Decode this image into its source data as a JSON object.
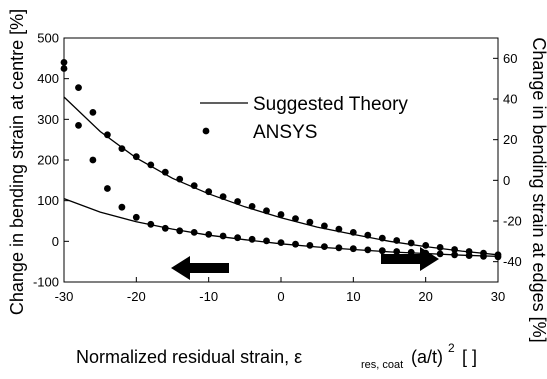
{
  "chart_data": {
    "type": "line",
    "title": "",
    "xlabel": "Normalized residual strain, ε",
    "xlabel_sub": "res, coat",
    "xlabel_tail": "(a/t)",
    "xlabel_sup": "2",
    "xlabel_unit": "[  ]",
    "ylabel_left": "Change in bending strain at centre [%]",
    "ylabel_right": "Change in bending strain at edges [%]",
    "xlim": [
      -30,
      30
    ],
    "ylim_left": [
      -100,
      500
    ],
    "ylim_right": [
      -50,
      70
    ],
    "x_ticks": [
      -30,
      -20,
      -10,
      0,
      10,
      20,
      30
    ],
    "y_ticks_left": [
      -100,
      0,
      100,
      200,
      300,
      400,
      500
    ],
    "y_ticks_right": [
      -40,
      -20,
      0,
      20,
      40,
      60
    ],
    "legend": {
      "position": "top-right",
      "entries": [
        {
          "label": "Suggested Theory",
          "marker": "line"
        },
        {
          "label": "ANSYS",
          "marker": "dot"
        }
      ]
    },
    "series": [
      {
        "axis": "left",
        "style": "line",
        "x": [
          -30,
          -25,
          -20,
          -15,
          -10,
          -5,
          0,
          5,
          10,
          15,
          20,
          25,
          30
        ],
        "y": [
          355,
          270,
          205,
          155,
          117,
          85,
          58,
          35,
          17,
          0,
          -13,
          -24,
          -33
        ]
      },
      {
        "axis": "left",
        "style": "line",
        "x": [
          -30,
          -25,
          -20,
          -15,
          -10,
          -5,
          0,
          5,
          10,
          15,
          20,
          25,
          30
        ],
        "y": [
          105,
          72,
          48,
          30,
          15,
          4,
          -6,
          -14,
          -20,
          -26,
          -30,
          -34,
          -37
        ]
      },
      {
        "axis": "left",
        "style": "dots",
        "x": [
          -30,
          -28,
          -26,
          -24,
          -22,
          -20,
          -18,
          -16,
          -14,
          -12,
          -10,
          -8,
          -6,
          -4,
          -2,
          0,
          2,
          4,
          6,
          8,
          10,
          12,
          14,
          16,
          18,
          20,
          22,
          24,
          26,
          28,
          30
        ],
        "y": [
          425,
          378,
          317,
          262,
          228,
          208,
          188,
          170,
          153,
          137,
          122,
          110,
          98,
          86,
          75,
          66,
          56,
          47,
          38,
          30,
          22,
          15,
          8,
          2,
          -4,
          -10,
          -15,
          -20,
          -25,
          -29,
          -33
        ]
      },
      {
        "axis": "left",
        "style": "dots",
        "x": [
          -30,
          -28,
          -26,
          -24,
          -22,
          -20,
          -18,
          -16,
          -14,
          -12,
          -10,
          -8,
          -6,
          -4,
          -2,
          0,
          2,
          4,
          6,
          8,
          10,
          12,
          14,
          16,
          18,
          20,
          22,
          24,
          26,
          28,
          30
        ],
        "y": [
          440,
          285,
          200,
          130,
          84,
          59,
          42,
          32,
          26,
          22,
          17,
          13,
          9,
          5,
          1,
          -3,
          -7,
          -10,
          -13,
          -16,
          -18,
          -21,
          -23,
          -25,
          -27,
          -29,
          -31,
          -33,
          -35,
          -37,
          -38
        ]
      }
    ]
  }
}
